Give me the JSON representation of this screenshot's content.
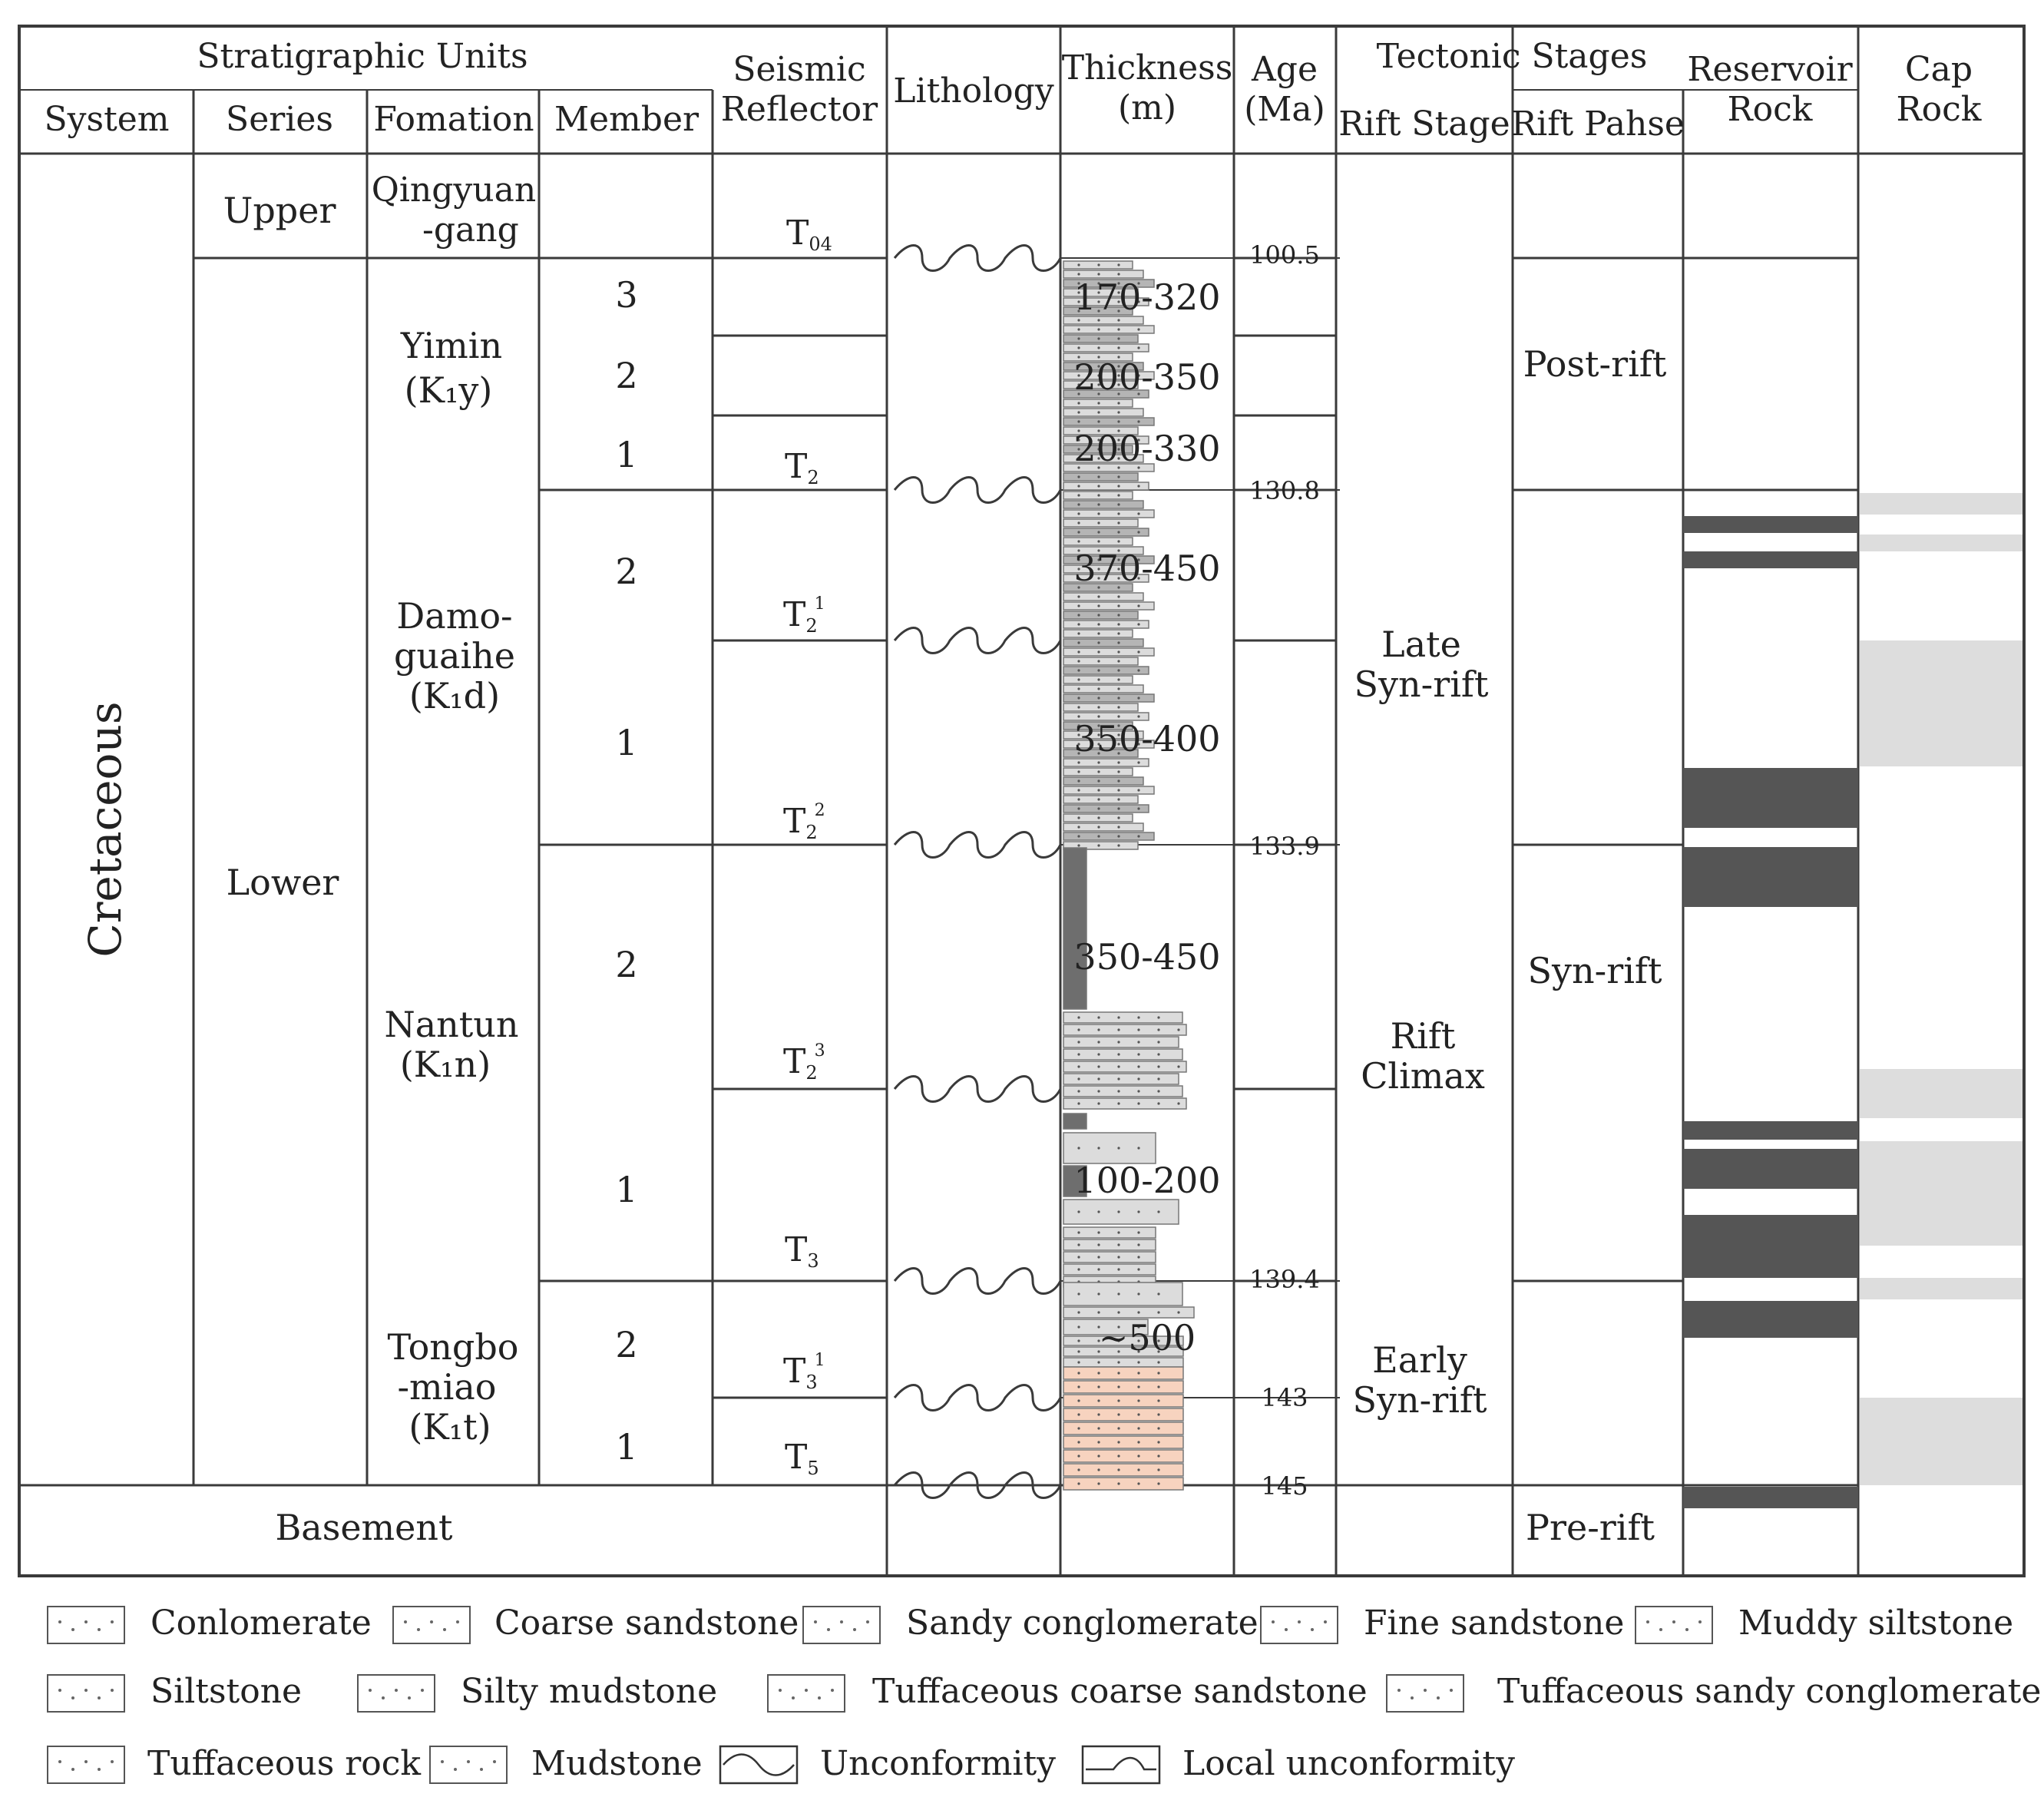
{
  "headers": {
    "stratigraphic_units": "Stratigraphic  Units",
    "system": "System",
    "series": "Series",
    "formation": "Fomation",
    "member": "Member",
    "seismic_line1": "Seismic",
    "seismic_line2": "Reflector",
    "lithology": "Lithology",
    "thickness_line1": "Thickness",
    "thickness_line2": "(m)",
    "age_line1": "Age",
    "age_line2": "(Ma)",
    "tectonic_stages": "Tectonic Stages",
    "rift_stage": "Rift Stage",
    "rift_phase": "Rift Pahse",
    "reservoir_line1": "Reservoir",
    "reservoir_line2": "Rock",
    "cap_line1": "Cap",
    "cap_line2": "Rock"
  },
  "system": "Cretaceous",
  "series": {
    "upper": "Upper",
    "lower": "Lower"
  },
  "basement": "Basement",
  "formations": {
    "qingyuangang": [
      "Qingyuan",
      "-gang"
    ],
    "yimin": [
      "Yimin",
      "(K₁y)"
    ],
    "damoguaihe": [
      "Damo-",
      "guaihe",
      "(K₁d)"
    ],
    "nantun": [
      "Nantun",
      "(K₁n)"
    ],
    "tongbomiao": [
      "Tongbo",
      "-miao",
      "(K₁t)"
    ]
  },
  "members": {
    "yimin_3": "3",
    "yimin_2": "2",
    "yimin_1": "1",
    "damoguaihe_2": "2",
    "damoguaihe_1": "1",
    "nantun_2": "2",
    "nantun_1": "1",
    "tongbomiao_2": "2",
    "tongbomiao_1": "1"
  },
  "reflectors": {
    "t04": {
      "base": "T",
      "sub": "04",
      "sup": ""
    },
    "t2": {
      "base": "T",
      "sub": "2",
      "sup": ""
    },
    "t2_1": {
      "base": "T",
      "sub": "2",
      "sup": "1"
    },
    "t2_2": {
      "base": "T",
      "sub": "2",
      "sup": "2"
    },
    "t2_3": {
      "base": "T",
      "sub": "2",
      "sup": "3"
    },
    "t3": {
      "base": "T",
      "sub": "3",
      "sup": ""
    },
    "t3_1": {
      "base": "T",
      "sub": "3",
      "sup": "1"
    },
    "t5": {
      "base": "T",
      "sub": "5",
      "sup": ""
    }
  },
  "thickness": {
    "yimin_3": "170-320",
    "yimin_2": "200-350",
    "yimin_1": "200-330",
    "damoguaihe_2": "370-450",
    "damoguaihe_1": "350-400",
    "nantun_2": "350-450",
    "nantun_1": "100-200",
    "tongbomiao": "~500"
  },
  "ages": [
    "100.5",
    "130.8",
    "133.9",
    "139.4",
    "143",
    "145"
  ],
  "rift_stages": {
    "late_syn_rift": [
      "Late",
      "Syn-rift"
    ],
    "rift_climax": [
      "Rift",
      "Climax"
    ],
    "early_syn_rift": [
      "Early",
      "Syn-rift"
    ]
  },
  "rift_phases": {
    "post_rift": "Post-rift",
    "syn_rift": "Syn-rift",
    "pre_rift": "Pre-rift"
  },
  "legend": {
    "conglomerate": "Conlomerate",
    "coarse_sandstone": "Coarse sandstone",
    "sandy_conglomerate": "Sandy conglomerate",
    "fine_sandstone": "Fine sandstone",
    "muddy_siltstone": "Muddy siltstone",
    "siltstone": "Siltstone",
    "silty_mudstone": "Silty mudstone",
    "tuffaceous_coarse_sandstone": "Tuffaceous coarse sandstone",
    "tuffaceous_sandy_conglomerate": "Tuffaceous sandy conglomerate",
    "tuffaceous_rock": "Tuffaceous rock",
    "mudstone": "Mudstone",
    "unconformity": "Unconformity",
    "local_unconformity": "Local unconformity"
  },
  "colors": {
    "line": "#3a3a3a",
    "reservoir": "#555555",
    "cap": "#dddddd",
    "litho_fill": "#dcdcdc",
    "mudstone": "#6e6e6e",
    "tuff": "#f7d3bf"
  }
}
